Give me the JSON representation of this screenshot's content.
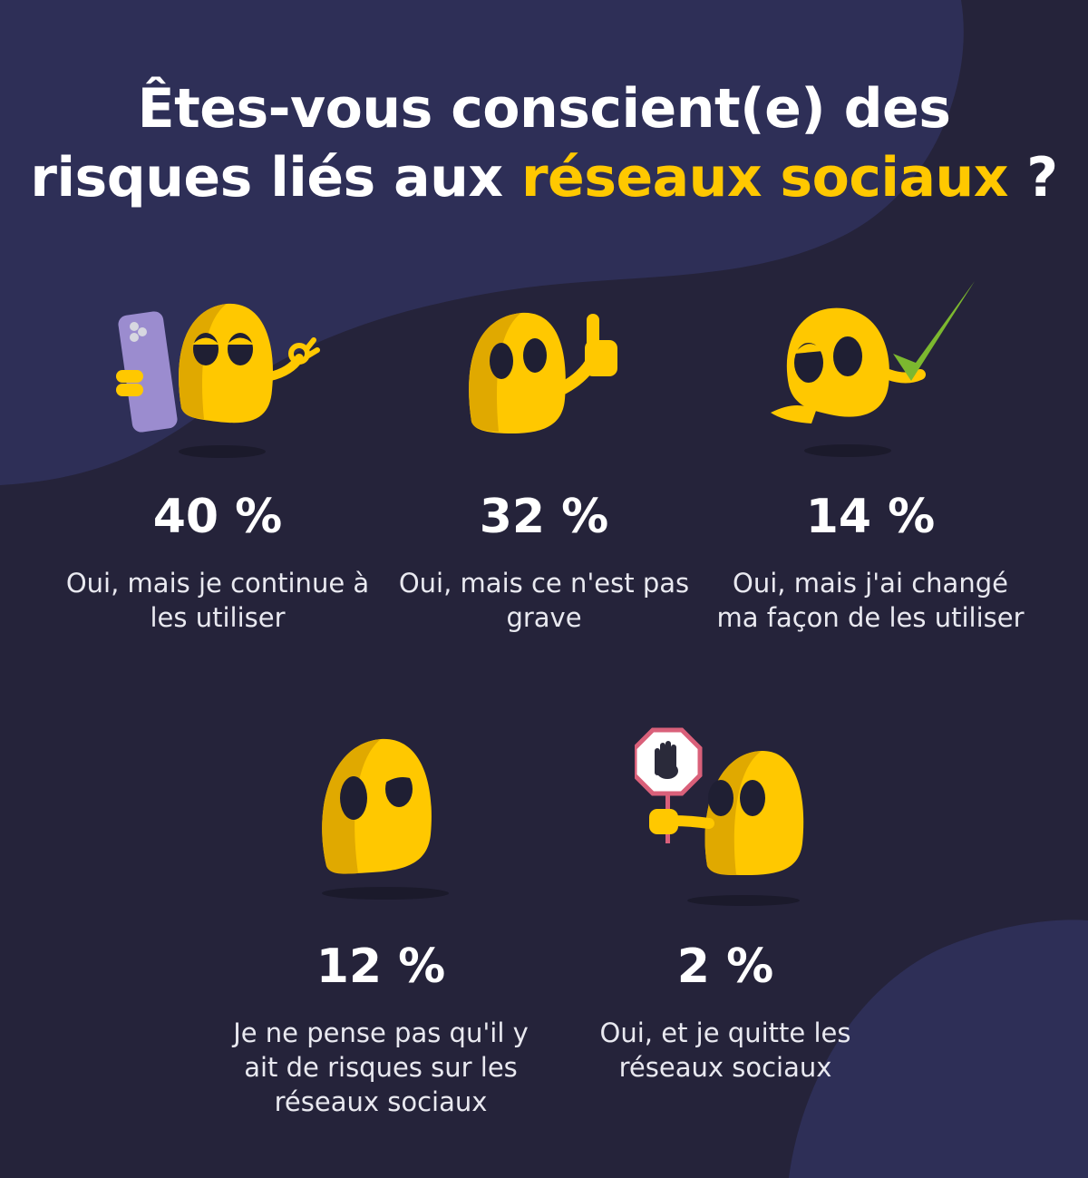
{
  "title": {
    "line1": "Êtes-vous conscient(e) des",
    "line2_prefix": "risques liés aux",
    "line2_highlight": "réseaux sociaux",
    "line2_suffix": "?"
  },
  "colors": {
    "background": "#25233a",
    "blob": "#2e2f57",
    "accent": "#ffc800",
    "text": "#ffffff"
  },
  "stats": [
    {
      "percent": "40 %",
      "label": "Oui, mais je continue à les utiliser",
      "mascot": "mascot-phone-ok-icon"
    },
    {
      "percent": "32 %",
      "label": "Oui, mais ce n'est pas grave",
      "mascot": "mascot-thumbs-up-icon"
    },
    {
      "percent": "14 %",
      "label": "Oui, mais j'ai changé ma façon de les utiliser",
      "mascot": "mascot-checkmark-icon"
    },
    {
      "percent": "12 %",
      "label": "Je ne pense pas qu'il y ait de risques sur les réseaux sociaux",
      "mascot": "mascot-skeptical-icon"
    },
    {
      "percent": "2 %",
      "label": "Oui, et je quitte les réseaux sociaux",
      "mascot": "mascot-stop-sign-icon"
    }
  ]
}
